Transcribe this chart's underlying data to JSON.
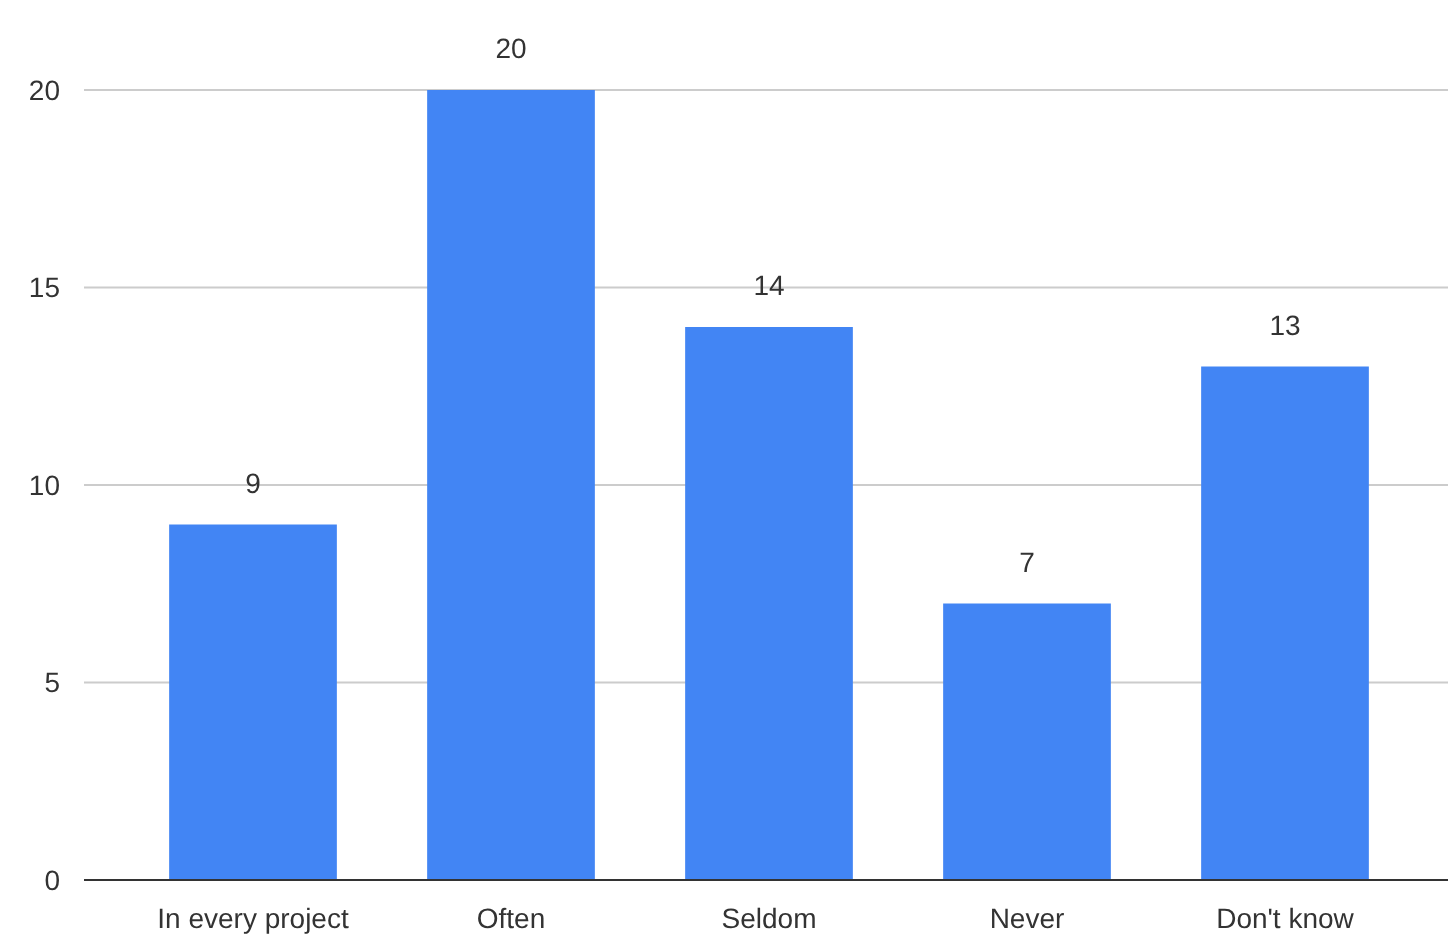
{
  "chart_data": {
    "type": "bar",
    "categories": [
      "In every project",
      "Often",
      "Seldom",
      "Never",
      "Don't know"
    ],
    "values": [
      9,
      20,
      14,
      7,
      13
    ],
    "color": "#4285f4",
    "ylim": [
      0,
      20
    ],
    "yticks": [
      0,
      5,
      10,
      15,
      20
    ],
    "grid": "y",
    "data_labels": true
  }
}
